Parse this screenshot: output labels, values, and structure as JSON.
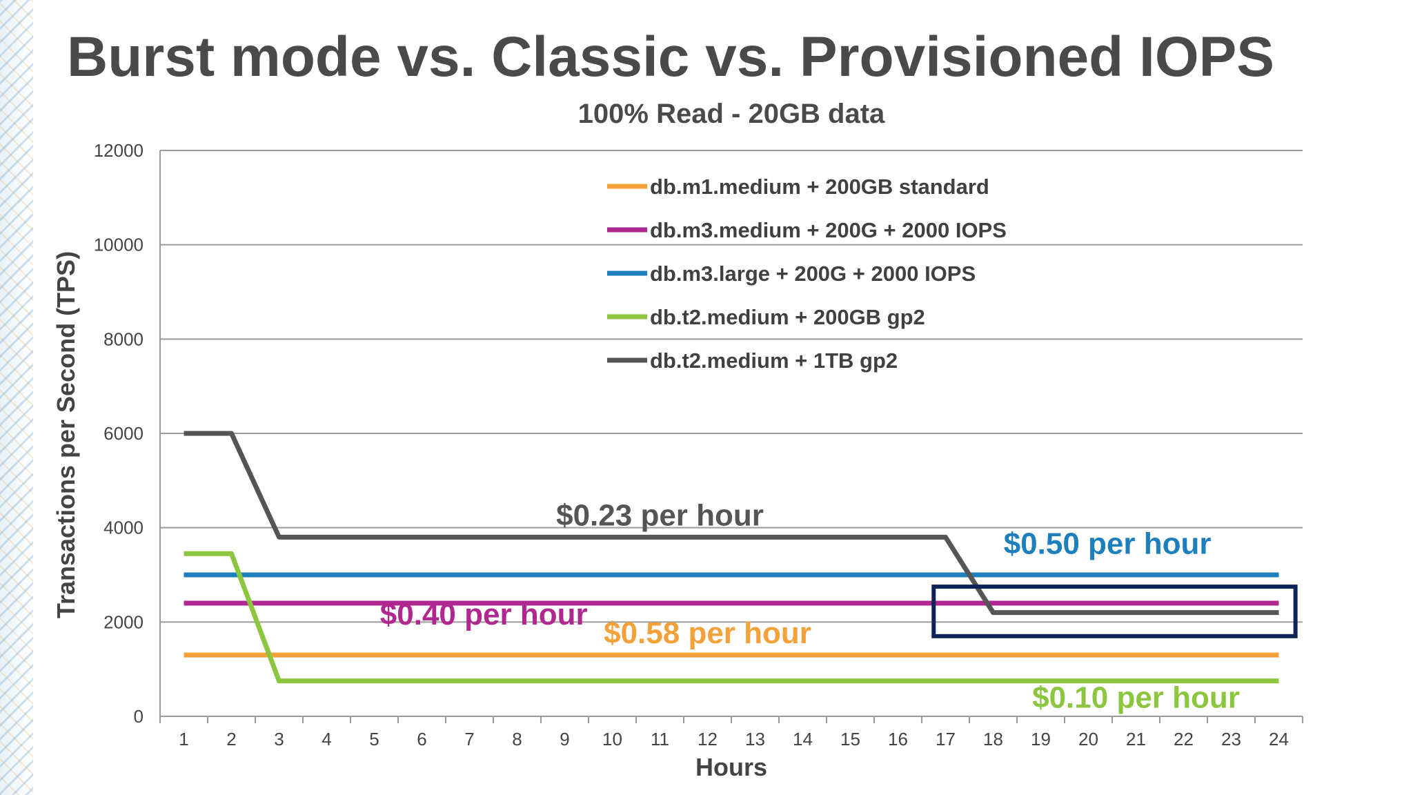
{
  "slide": {
    "title": "Burst mode vs. Classic vs. Provisioned IOPS"
  },
  "chart_data": {
    "type": "line",
    "title": "100% Read - 20GB data",
    "xlabel": "Hours",
    "ylabel": "Transactions per Second (TPS)",
    "ylim": [
      0,
      12000
    ],
    "yticks": [
      0,
      2000,
      4000,
      6000,
      8000,
      10000,
      12000
    ],
    "grid": true,
    "legend_position": "top-center",
    "x": [
      1,
      2,
      3,
      4,
      5,
      6,
      7,
      8,
      9,
      10,
      11,
      12,
      13,
      14,
      15,
      16,
      17,
      18,
      19,
      20,
      21,
      22,
      23,
      24
    ],
    "series": [
      {
        "name": "db.m1.medium + 200GB standard",
        "color": "#f4a13a",
        "values": [
          1300,
          1300,
          1300,
          1300,
          1300,
          1300,
          1300,
          1300,
          1300,
          1300,
          1300,
          1300,
          1300,
          1300,
          1300,
          1300,
          1300,
          1300,
          1300,
          1300,
          1300,
          1300,
          1300,
          1300
        ]
      },
      {
        "name": "db.m3.medium + 200G + 2000 IOPS",
        "color": "#b0288f",
        "values": [
          2400,
          2400,
          2400,
          2400,
          2400,
          2400,
          2400,
          2400,
          2400,
          2400,
          2400,
          2400,
          2400,
          2400,
          2400,
          2400,
          2400,
          2400,
          2400,
          2400,
          2400,
          2400,
          2400,
          2400
        ]
      },
      {
        "name": "db.m3.large + 200G + 2000 IOPS",
        "color": "#1e7fbd",
        "values": [
          3000,
          3000,
          3000,
          3000,
          3000,
          3000,
          3000,
          3000,
          3000,
          3000,
          3000,
          3000,
          3000,
          3000,
          3000,
          3000,
          3000,
          3000,
          3000,
          3000,
          3000,
          3000,
          3000,
          3000
        ]
      },
      {
        "name": "db.t2.medium + 200GB gp2",
        "color": "#8cc63f",
        "values": [
          3450,
          3450,
          750,
          750,
          750,
          750,
          750,
          750,
          750,
          750,
          750,
          750,
          750,
          750,
          750,
          750,
          750,
          750,
          750,
          750,
          750,
          750,
          750,
          750
        ]
      },
      {
        "name": "db.t2.medium + 1TB gp2",
        "color": "#555555",
        "values": [
          6000,
          6000,
          3800,
          3800,
          3800,
          3800,
          3800,
          3800,
          3800,
          3800,
          3800,
          3800,
          3800,
          3800,
          3800,
          3800,
          3800,
          2200,
          2200,
          2200,
          2200,
          2200,
          2200,
          2200
        ]
      }
    ],
    "annotations": [
      {
        "text": "$0.23 per hour",
        "color": "#555555",
        "x": 11,
        "y": 4050
      },
      {
        "text": "$0.50 per hour",
        "color": "#1e7fbd",
        "x": 20.4,
        "y": 3450
      },
      {
        "text": "$0.40 per hour",
        "color": "#b0288f",
        "x": 7.3,
        "y": 1950
      },
      {
        "text": "$0.58 per hour",
        "color": "#f4a13a",
        "x": 12,
        "y": 1550
      },
      {
        "text": "$0.10 per hour",
        "color": "#8cc63f",
        "x": 21,
        "y": 180
      }
    ],
    "highlight_box": {
      "x_range": [
        16.75,
        24.35
      ],
      "y_range": [
        1700,
        2750
      ],
      "color": "#0e2356"
    }
  }
}
